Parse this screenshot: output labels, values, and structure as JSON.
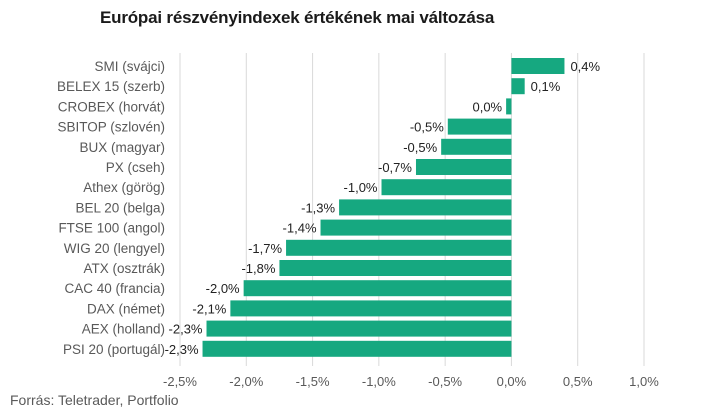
{
  "chart_data": {
    "type": "bar",
    "orientation": "horizontal",
    "title": "Európai részvényindexek értékének mai változása",
    "categories": [
      "SMI (svájci)",
      "BELEX 15 (szerb)",
      "CROBEX (horvát)",
      "SBITOP (szlovén)",
      "BUX (magyar)",
      "PX (cseh)",
      "Athex (görög)",
      "BEL 20 (belga)",
      "FTSE 100 (angol)",
      "WIG 20 (lengyel)",
      "ATX (osztrák)",
      "CAC 40 (francia)",
      "DAX (német)",
      "AEX (holland)",
      "PSI 20 (portugál)"
    ],
    "values": [
      0.4,
      0.1,
      -0.04,
      -0.48,
      -0.53,
      -0.72,
      -0.98,
      -1.3,
      -1.44,
      -1.7,
      -1.75,
      -2.02,
      -2.12,
      -2.3,
      -2.33
    ],
    "value_labels": [
      "0,4%",
      "0,1%",
      "0,0%",
      "-0,5%",
      "-0,5%",
      "-0,7%",
      "-1,0%",
      "-1,3%",
      "-1,4%",
      "-1,7%",
      "-1,8%",
      "-2,0%",
      "-2,1%",
      "-2,3%",
      "-2,3%"
    ],
    "xlim": [
      -2.5,
      1.0
    ],
    "xticks": [
      -2.5,
      -2.0,
      -1.5,
      -1.0,
      -0.5,
      0.0,
      0.5,
      1.0
    ],
    "xtick_labels": [
      "-2,5%",
      "-2,0%",
      "-1,5%",
      "-1,0%",
      "-0,5%",
      "0,0%",
      "0,5%",
      "1,0%"
    ],
    "grid": true,
    "bar_color": "#16a880",
    "grid_color": "#d9d9d9"
  },
  "source": "Forrás: Teletrader, Portfolio"
}
